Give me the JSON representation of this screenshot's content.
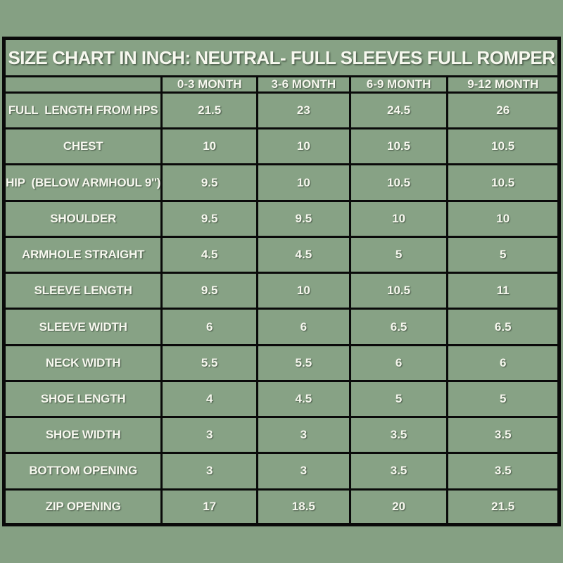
{
  "colors": {
    "page_background": "#85a083",
    "cell_background": "#87a285",
    "grid_border": "#0a0a0a",
    "text": "#f7f8ef"
  },
  "chart_data": {
    "type": "table",
    "title": "SIZE CHART IN INCH: NEUTRAL- FULL SLEEVES FULL ROMPER",
    "columns": [
      "",
      "0-3 MONTH",
      "3-6 MONTH",
      "6-9 MONTH",
      "9-12 MONTH"
    ],
    "rows": [
      {
        "label": "FULL  LENGTH FROM HPS",
        "values": [
          "21.5",
          "23",
          "24.5",
          "26"
        ]
      },
      {
        "label": "CHEST",
        "values": [
          "10",
          "10",
          "10.5",
          "10.5"
        ]
      },
      {
        "label": "HIP  (BELOW ARMHOUL 9'')",
        "values": [
          "9.5",
          "10",
          "10.5",
          "10.5"
        ]
      },
      {
        "label": "SHOULDER",
        "values": [
          "9.5",
          "9.5",
          "10",
          "10"
        ]
      },
      {
        "label": "ARMHOLE STRAIGHT",
        "values": [
          "4.5",
          "4.5",
          "5",
          "5"
        ]
      },
      {
        "label": "SLEEVE LENGTH",
        "values": [
          "9.5",
          "10",
          "10.5",
          "11"
        ]
      },
      {
        "label": "SLEEVE WIDTH",
        "values": [
          "6",
          "6",
          "6.5",
          "6.5"
        ]
      },
      {
        "label": "NECK WIDTH",
        "values": [
          "5.5",
          "5.5",
          "6",
          "6"
        ]
      },
      {
        "label": "SHOE LENGTH",
        "values": [
          "4",
          "4.5",
          "5",
          "5"
        ]
      },
      {
        "label": "SHOE WIDTH",
        "values": [
          "3",
          "3",
          "3.5",
          "3.5"
        ]
      },
      {
        "label": "BOTTOM OPENING",
        "values": [
          "3",
          "3",
          "3.5",
          "3.5"
        ]
      },
      {
        "label": "ZIP OPENING",
        "values": [
          "17",
          "18.5",
          "20",
          "21.5"
        ]
      }
    ]
  }
}
